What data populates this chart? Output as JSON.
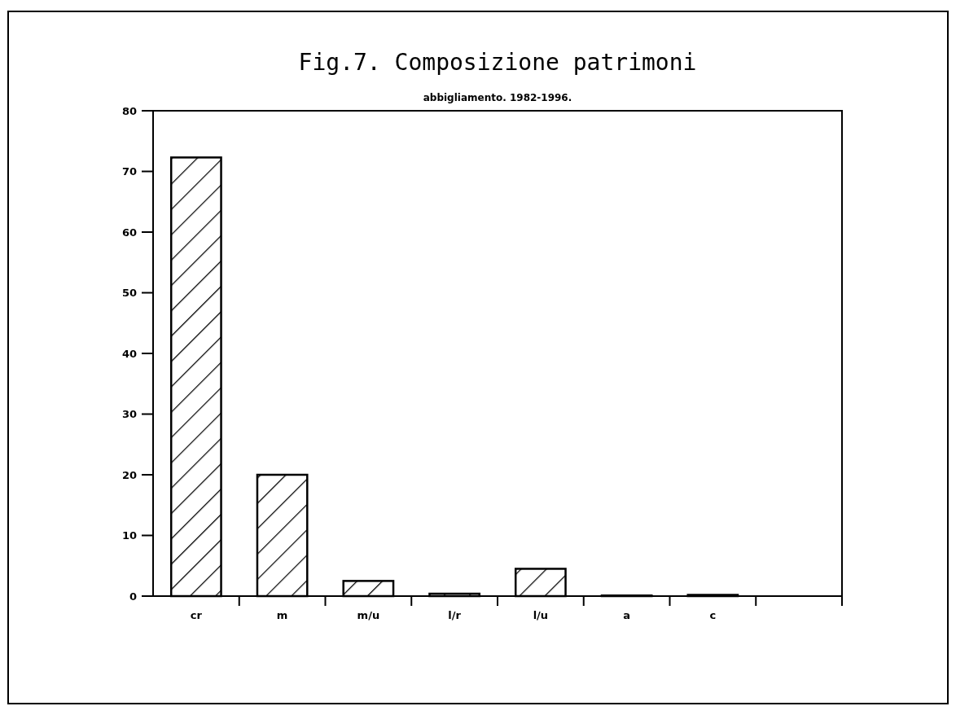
{
  "chart_data": {
    "type": "bar",
    "title": "Fig.7. Composizione patrimoni",
    "subtitle": "abbigliamento. 1982-1996.",
    "categories": [
      "cr",
      "m",
      "m/u",
      "l/r",
      "l/u",
      "a",
      "c",
      null
    ],
    "values": [
      72.3,
      20,
      2.5,
      0.4,
      4.5,
      0.1,
      0.2,
      0
    ],
    "color": "#000000",
    "ylim": [
      0,
      80
    ],
    "yticks": [
      0,
      10,
      20,
      30,
      40,
      50,
      60,
      70,
      80
    ],
    "grid": false
  }
}
